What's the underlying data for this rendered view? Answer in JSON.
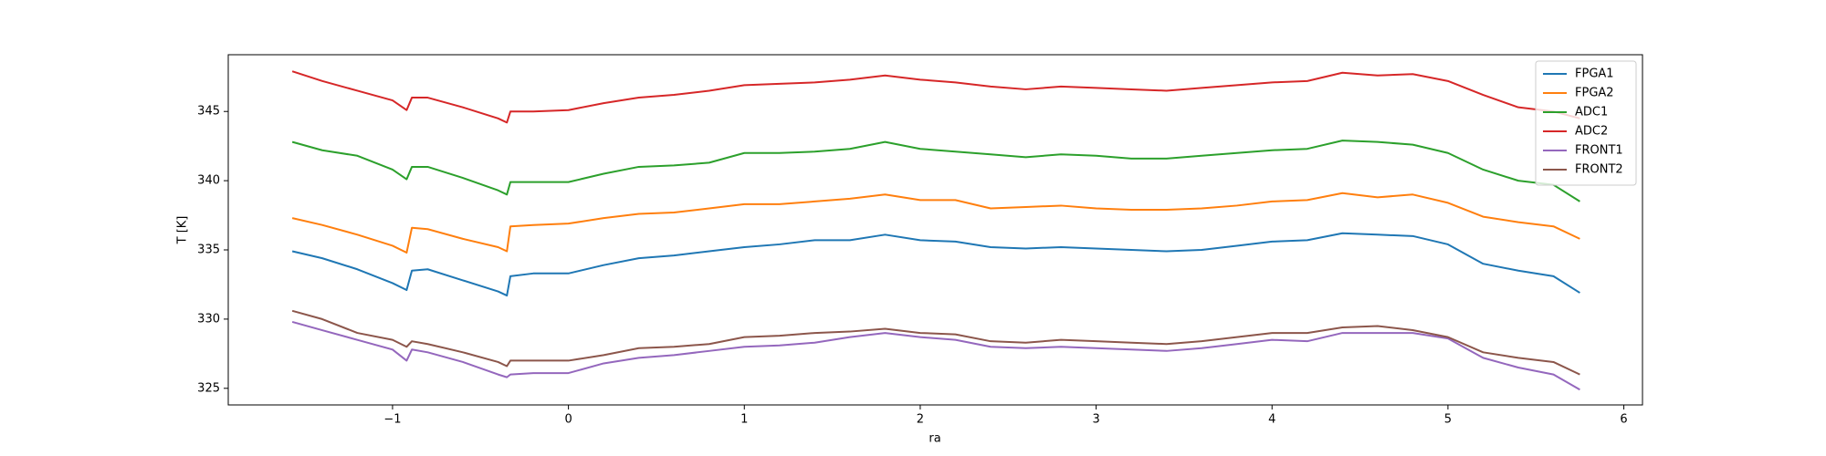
{
  "chart_data": {
    "type": "line",
    "xlabel": "ra",
    "ylabel": "T [K]",
    "x": [
      -1.57,
      -1.4,
      -1.2,
      -1.0,
      -0.92,
      -0.89,
      -0.8,
      -0.6,
      -0.4,
      -0.35,
      -0.33,
      -0.2,
      0,
      0.2,
      0.4,
      0.6,
      0.8,
      1.0,
      1.2,
      1.4,
      1.6,
      1.8,
      2.0,
      2.2,
      2.4,
      2.6,
      2.8,
      3.0,
      3.2,
      3.4,
      3.6,
      3.8,
      4.0,
      4.2,
      4.4,
      4.6,
      4.8,
      5.0,
      5.2,
      5.4,
      5.6,
      5.75
    ],
    "series": [
      {
        "name": "FPGA1",
        "color": "#1f77b4",
        "values": [
          334.9,
          334.4,
          333.6,
          332.6,
          332.1,
          333.5,
          333.6,
          332.8,
          332.0,
          331.7,
          333.1,
          333.3,
          333.3,
          333.9,
          334.4,
          334.6,
          334.9,
          335.2,
          335.4,
          335.7,
          335.7,
          336.1,
          335.7,
          335.6,
          335.2,
          335.1,
          335.2,
          335.1,
          335.0,
          334.9,
          335.0,
          335.3,
          335.6,
          335.7,
          336.2,
          336.1,
          336.0,
          335.4,
          334.0,
          333.5,
          333.1,
          331.9
        ]
      },
      {
        "name": "FPGA2",
        "color": "#ff7f0e",
        "values": [
          337.3,
          336.8,
          336.1,
          335.3,
          334.8,
          336.6,
          336.5,
          335.8,
          335.2,
          334.9,
          336.7,
          336.8,
          336.9,
          337.3,
          337.6,
          337.7,
          338.0,
          338.3,
          338.3,
          338.5,
          338.7,
          339.0,
          338.6,
          338.6,
          338.0,
          338.1,
          338.2,
          338.0,
          337.9,
          337.9,
          338.0,
          338.2,
          338.5,
          338.6,
          339.1,
          338.8,
          339.0,
          338.4,
          337.4,
          337.0,
          336.7,
          335.8
        ]
      },
      {
        "name": "ADC1",
        "color": "#2ca02c",
        "values": [
          342.8,
          342.2,
          341.8,
          340.8,
          340.1,
          341.0,
          341.0,
          340.2,
          339.3,
          339.0,
          339.9,
          339.9,
          339.9,
          340.5,
          341.0,
          341.1,
          341.3,
          342.0,
          342.0,
          342.1,
          342.3,
          342.8,
          342.3,
          342.1,
          341.9,
          341.7,
          341.9,
          341.8,
          341.6,
          341.6,
          341.8,
          342.0,
          342.2,
          342.3,
          342.9,
          342.8,
          342.6,
          342.0,
          340.8,
          340.0,
          339.7,
          338.5
        ]
      },
      {
        "name": "ADC2",
        "color": "#d62728",
        "values": [
          347.9,
          347.2,
          346.5,
          345.8,
          345.1,
          346.0,
          346.0,
          345.3,
          344.5,
          344.2,
          345.0,
          345.0,
          345.1,
          345.6,
          346.0,
          346.2,
          346.5,
          346.9,
          347.0,
          347.1,
          347.3,
          347.6,
          347.3,
          347.1,
          346.8,
          346.6,
          346.8,
          346.7,
          346.6,
          346.5,
          346.7,
          346.9,
          347.1,
          347.2,
          347.8,
          347.6,
          347.7,
          347.2,
          346.2,
          345.3,
          345.0,
          344.5
        ]
      },
      {
        "name": "FRONT1",
        "color": "#9467bd",
        "values": [
          329.8,
          329.2,
          328.5,
          327.8,
          327.0,
          327.8,
          327.6,
          326.9,
          326.0,
          325.8,
          326.0,
          326.1,
          326.1,
          326.8,
          327.2,
          327.4,
          327.7,
          328.0,
          328.1,
          328.3,
          328.7,
          329.0,
          328.7,
          328.5,
          328.0,
          327.9,
          328.0,
          327.9,
          327.8,
          327.7,
          327.9,
          328.2,
          328.5,
          328.4,
          329.0,
          329.0,
          329.0,
          328.6,
          327.2,
          326.5,
          326.0,
          324.9
        ]
      },
      {
        "name": "FRONT2",
        "color": "#8c564b",
        "values": [
          330.6,
          330.0,
          329.0,
          328.5,
          328.0,
          328.4,
          328.2,
          327.6,
          326.9,
          326.6,
          327.0,
          327.0,
          327.0,
          327.4,
          327.9,
          328.0,
          328.2,
          328.7,
          328.8,
          329.0,
          329.1,
          329.3,
          329.0,
          328.9,
          328.4,
          328.3,
          328.5,
          328.4,
          328.3,
          328.2,
          328.4,
          328.7,
          329.0,
          329.0,
          329.4,
          329.5,
          329.2,
          328.7,
          327.6,
          327.2,
          326.9,
          326.0
        ]
      }
    ],
    "xlim": [
      -1.934,
      6.106
    ],
    "ylim": [
      323.8,
      349.1
    ],
    "xticks": [
      {
        "value": -1,
        "label": "−1"
      },
      0,
      1,
      2,
      3,
      4,
      5,
      6
    ],
    "yticks": [
      325,
      330,
      335,
      340,
      345
    ],
    "legend": "upper right"
  }
}
